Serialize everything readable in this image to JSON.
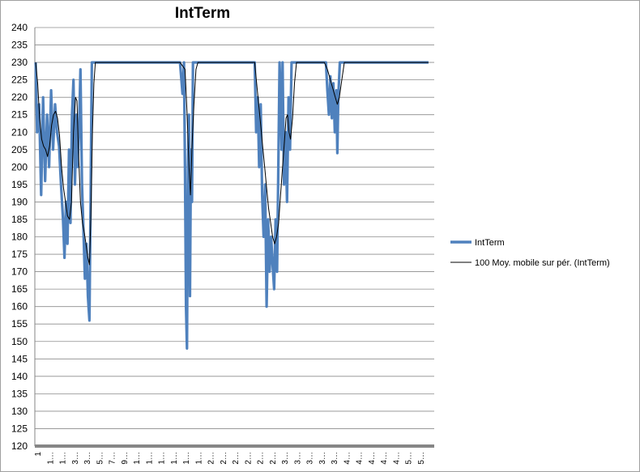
{
  "chart_data": {
    "type": "line",
    "title": "IntTerm",
    "xlabel": "",
    "ylabel": "",
    "ylim": [
      120,
      240
    ],
    "yticks": [
      120,
      125,
      130,
      135,
      140,
      145,
      150,
      155,
      160,
      165,
      170,
      175,
      180,
      185,
      190,
      195,
      200,
      205,
      210,
      215,
      220,
      225,
      230,
      235,
      240
    ],
    "xtick_labels": [
      "1",
      "1…",
      "1…",
      "3…",
      "3…",
      "5…",
      "7…",
      "9…",
      "1…",
      "1…",
      "1…",
      "1…",
      "1…",
      "1…",
      "2…",
      "2…",
      "2…",
      "2…",
      "2…",
      "2…",
      "3…",
      "3…",
      "3…",
      "3…",
      "3…",
      "4…",
      "4…",
      "4…",
      "4…",
      "4…",
      "5…",
      "5…"
    ],
    "grid": true,
    "legend_position": "right",
    "n_points": 800,
    "series": [
      {
        "name": "IntTerm",
        "color": "#4f81bd",
        "points": [
          [
            0,
            230
          ],
          [
            3,
            210
          ],
          [
            7,
            218
          ],
          [
            11,
            192
          ],
          [
            15,
            220
          ],
          [
            19,
            196
          ],
          [
            23,
            215
          ],
          [
            27,
            200
          ],
          [
            31,
            222
          ],
          [
            35,
            205
          ],
          [
            39,
            218
          ],
          [
            43,
            210
          ],
          [
            47,
            206
          ],
          [
            51,
            195
          ],
          [
            55,
            185
          ],
          [
            58,
            174
          ],
          [
            61,
            190
          ],
          [
            64,
            178
          ],
          [
            67,
            205
          ],
          [
            70,
            184
          ],
          [
            73,
            215
          ],
          [
            76,
            225
          ],
          [
            79,
            195
          ],
          [
            82,
            215
          ],
          [
            84,
            200
          ],
          [
            87,
            210
          ],
          [
            90,
            228
          ],
          [
            93,
            195
          ],
          [
            96,
            182
          ],
          [
            99,
            168
          ],
          [
            102,
            178
          ],
          [
            105,
            163
          ],
          [
            108,
            156
          ],
          [
            110,
            185
          ],
          [
            113,
            230
          ],
          [
            130,
            230
          ],
          [
            170,
            230
          ],
          [
            240,
            230
          ],
          [
            290,
            230
          ],
          [
            295,
            221
          ],
          [
            298,
            230
          ],
          [
            300,
            198
          ],
          [
            302,
            160
          ],
          [
            304,
            148
          ],
          [
            306,
            200
          ],
          [
            308,
            215
          ],
          [
            310,
            163
          ],
          [
            312,
            205
          ],
          [
            314,
            190
          ],
          [
            316,
            230
          ],
          [
            360,
            230
          ],
          [
            430,
            230
          ],
          [
            440,
            230
          ],
          [
            443,
            210
          ],
          [
            446,
            220
          ],
          [
            449,
            200
          ],
          [
            452,
            218
          ],
          [
            455,
            192
          ],
          [
            458,
            180
          ],
          [
            461,
            195
          ],
          [
            464,
            160
          ],
          [
            467,
            185
          ],
          [
            470,
            170
          ],
          [
            473,
            180
          ],
          [
            476,
            172
          ],
          [
            479,
            165
          ],
          [
            482,
            185
          ],
          [
            485,
            170
          ],
          [
            487,
            195
          ],
          [
            490,
            230
          ],
          [
            492,
            220
          ],
          [
            494,
            205
          ],
          [
            496,
            230
          ],
          [
            499,
            195
          ],
          [
            502,
            210
          ],
          [
            505,
            190
          ],
          [
            508,
            220
          ],
          [
            511,
            205
          ],
          [
            514,
            230
          ],
          [
            560,
            230
          ],
          [
            583,
            230
          ],
          [
            586,
            222
          ],
          [
            589,
            215
          ],
          [
            592,
            226
          ],
          [
            595,
            214
          ],
          [
            598,
            224
          ],
          [
            601,
            210
          ],
          [
            604,
            222
          ],
          [
            606,
            204
          ],
          [
            608,
            220
          ],
          [
            611,
            230
          ],
          [
            700,
            230
          ],
          [
            789,
            230
          ]
        ]
      },
      {
        "name": "100 Moy. mobile sur pér. (IntTerm)",
        "color": "#000000",
        "points": [
          [
            0,
            230
          ],
          [
            4,
            224
          ],
          [
            8,
            214
          ],
          [
            12,
            208
          ],
          [
            16,
            206
          ],
          [
            20,
            205
          ],
          [
            24,
            203
          ],
          [
            28,
            206
          ],
          [
            32,
            212
          ],
          [
            36,
            215
          ],
          [
            40,
            216
          ],
          [
            44,
            214
          ],
          [
            48,
            209
          ],
          [
            52,
            200
          ],
          [
            56,
            194
          ],
          [
            60,
            190
          ],
          [
            64,
            186
          ],
          [
            68,
            185
          ],
          [
            72,
            190
          ],
          [
            76,
            210
          ],
          [
            80,
            220
          ],
          [
            83,
            219
          ],
          [
            86,
            205
          ],
          [
            90,
            190
          ],
          [
            94,
            184
          ],
          [
            98,
            181
          ],
          [
            102,
            177
          ],
          [
            105,
            174
          ],
          [
            108,
            172
          ],
          [
            111,
            186
          ],
          [
            114,
            210
          ],
          [
            117,
            224
          ],
          [
            120,
            230
          ],
          [
            200,
            230
          ],
          [
            290,
            230
          ],
          [
            300,
            228
          ],
          [
            304,
            216
          ],
          [
            308,
            200
          ],
          [
            311,
            192
          ],
          [
            314,
            206
          ],
          [
            318,
            218
          ],
          [
            322,
            228
          ],
          [
            326,
            230
          ],
          [
            420,
            230
          ],
          [
            440,
            230
          ],
          [
            444,
            224
          ],
          [
            448,
            218
          ],
          [
            452,
            212
          ],
          [
            456,
            206
          ],
          [
            460,
            200
          ],
          [
            464,
            194
          ],
          [
            468,
            188
          ],
          [
            472,
            184
          ],
          [
            476,
            180
          ],
          [
            480,
            178
          ],
          [
            484,
            180
          ],
          [
            488,
            184
          ],
          [
            492,
            192
          ],
          [
            496,
            200
          ],
          [
            500,
            208
          ],
          [
            503,
            214
          ],
          [
            506,
            215
          ],
          [
            509,
            210
          ],
          [
            512,
            208
          ],
          [
            516,
            214
          ],
          [
            520,
            224
          ],
          [
            524,
            230
          ],
          [
            580,
            230
          ],
          [
            586,
            228
          ],
          [
            590,
            226
          ],
          [
            594,
            224
          ],
          [
            598,
            222
          ],
          [
            602,
            220
          ],
          [
            606,
            218
          ],
          [
            610,
            220
          ],
          [
            614,
            224
          ],
          [
            618,
            228
          ],
          [
            620,
            230
          ],
          [
            700,
            230
          ],
          [
            789,
            230
          ]
        ]
      }
    ]
  }
}
